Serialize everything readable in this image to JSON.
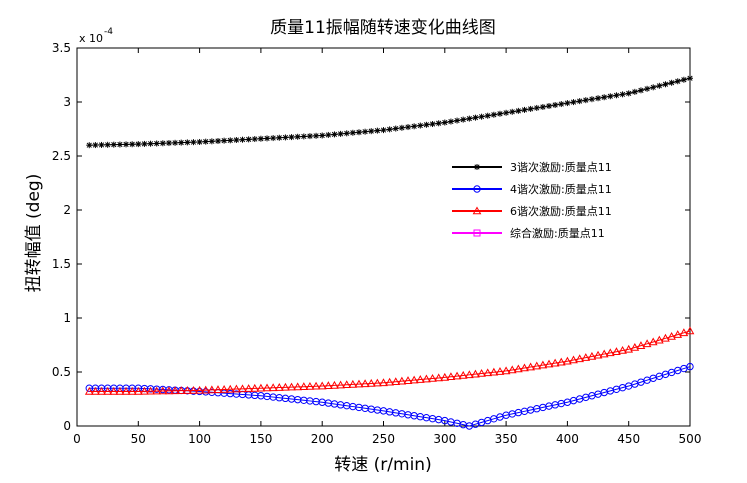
{
  "chart_data": {
    "type": "line",
    "title": "质量11振幅随转速变化曲线图",
    "xlabel": "转速 (r/min)",
    "ylabel": "扭转幅值 (deg)",
    "xlim": [
      0,
      500
    ],
    "ylim": [
      0,
      3.5
    ],
    "y_scale_label": "x 10",
    "y_scale_exponent": "-4",
    "x_ticks": [
      0,
      50,
      100,
      150,
      200,
      250,
      300,
      350,
      400,
      450,
      500
    ],
    "x_tick_labels": [
      "0",
      "50",
      "100",
      "150",
      "200",
      "250",
      "300",
      "350",
      "400",
      "450",
      "500"
    ],
    "y_ticks": [
      0,
      0.5,
      1,
      1.5,
      2,
      2.5,
      3,
      3.5
    ],
    "y_tick_labels": [
      "0",
      "0.5",
      "1",
      "1.5",
      "2",
      "2.5",
      "3",
      "3.5"
    ],
    "x_range": {
      "start": 10,
      "end": 500,
      "step": 5
    },
    "legend_position": "right",
    "series": [
      {
        "name": "3谐次激励:质量点11",
        "color": "#000000",
        "marker": "star",
        "x": [
          10,
          50,
          100,
          150,
          200,
          250,
          300,
          350,
          400,
          450,
          500
        ],
        "values": [
          2.6,
          2.61,
          2.63,
          2.66,
          2.69,
          2.74,
          2.81,
          2.9,
          2.99,
          3.08,
          3.22
        ]
      },
      {
        "name": "4谐次激励:质量点11",
        "color": "#0000ff",
        "marker": "circle",
        "x": [
          10,
          50,
          100,
          150,
          200,
          250,
          300,
          320,
          350,
          400,
          450,
          500
        ],
        "values": [
          0.35,
          0.35,
          0.32,
          0.28,
          0.22,
          0.14,
          0.05,
          0.0,
          0.1,
          0.22,
          0.37,
          0.55
        ]
      },
      {
        "name": "6谐次激励:质量点11",
        "color": "#ff0000",
        "marker": "triangle",
        "x": [
          10,
          50,
          100,
          150,
          200,
          250,
          300,
          350,
          400,
          450,
          500
        ],
        "values": [
          0.32,
          0.32,
          0.33,
          0.35,
          0.37,
          0.4,
          0.45,
          0.51,
          0.6,
          0.71,
          0.88
        ]
      },
      {
        "name": "综合激励:质量点11",
        "color": "#ff00ff",
        "marker": "square",
        "x": [],
        "values": []
      }
    ]
  }
}
